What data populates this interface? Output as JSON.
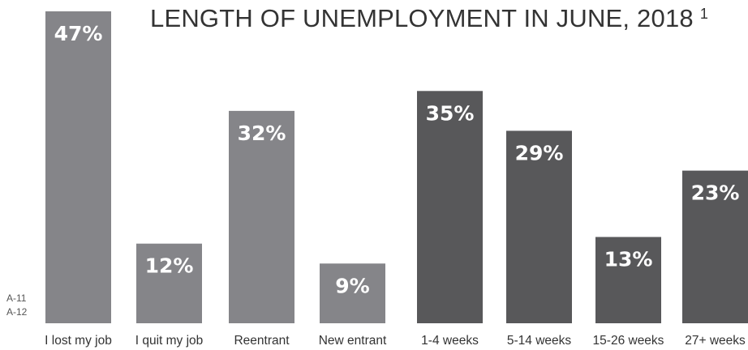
{
  "chart_data": {
    "type": "bar",
    "title": "LENGTH OF UNEMPLOYMENT IN JUNE, 2018",
    "title_footnote": "1",
    "categories": [
      "I lost my job",
      "I quit my job",
      "Reentrant",
      "New entrant",
      "1-4 weeks",
      "5-14 weeks",
      "15-26 weeks",
      "27+ weeks"
    ],
    "values": [
      47,
      12,
      32,
      9,
      35,
      29,
      13,
      23
    ],
    "value_labels": [
      "47%",
      "12%",
      "32%",
      "9%",
      "35%",
      "29%",
      "13%",
      "23%"
    ],
    "unit": "%",
    "ylim": [
      0,
      47
    ],
    "grid": false,
    "legend": "none",
    "colors": {
      "group_reason": "#858589",
      "group_duration": "#58585a"
    },
    "group_of_category": [
      "reason",
      "reason",
      "reason",
      "reason",
      "duration",
      "duration",
      "duration",
      "duration"
    ]
  },
  "side_codes": [
    "A-11",
    "A-12"
  ]
}
